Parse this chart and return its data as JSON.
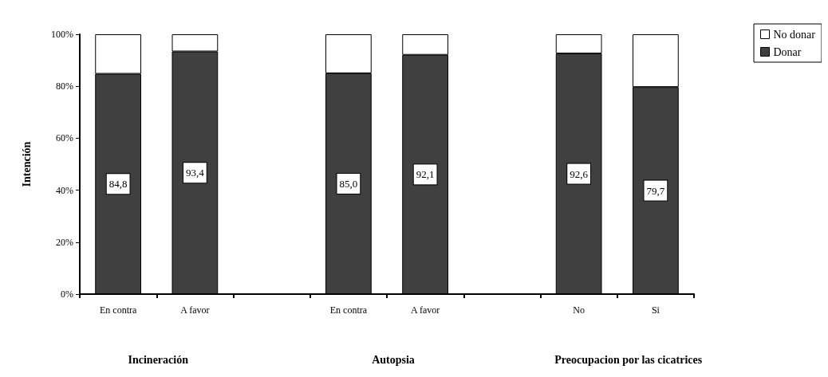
{
  "chart_data": {
    "type": "bar",
    "stacked": true,
    "ylabel": "Intención",
    "categories": [
      "En contra",
      "A favor",
      null,
      "En contra",
      "A favor",
      null,
      "No",
      "Si"
    ],
    "series": [
      {
        "name": "Donar",
        "color": "#404040",
        "values": [
          84.8,
          93.4,
          null,
          85.0,
          92.1,
          null,
          92.6,
          79.7
        ],
        "value_labels": [
          "84,8",
          "93,4",
          null,
          "85,0",
          "92,1",
          null,
          "92,6",
          "79,7"
        ]
      },
      {
        "name": "No donar",
        "color": "#ffffff",
        "values": [
          15.2,
          6.6,
          null,
          15.0,
          7.9,
          null,
          7.4,
          20.3
        ]
      }
    ],
    "ylim": [
      0,
      100
    ],
    "yticks": [
      {
        "value": 0,
        "label": "0%"
      },
      {
        "value": 20,
        "label": "20%"
      },
      {
        "value": 40,
        "label": "40%"
      },
      {
        "value": 60,
        "label": "60%"
      },
      {
        "value": 80,
        "label": "80%"
      },
      {
        "value": 100,
        "label": "100%"
      }
    ],
    "annotations": [
      "Incineración",
      "Autopsia",
      "Preocupacion por las cicatrices"
    ],
    "grid": false,
    "legend": "top right"
  }
}
